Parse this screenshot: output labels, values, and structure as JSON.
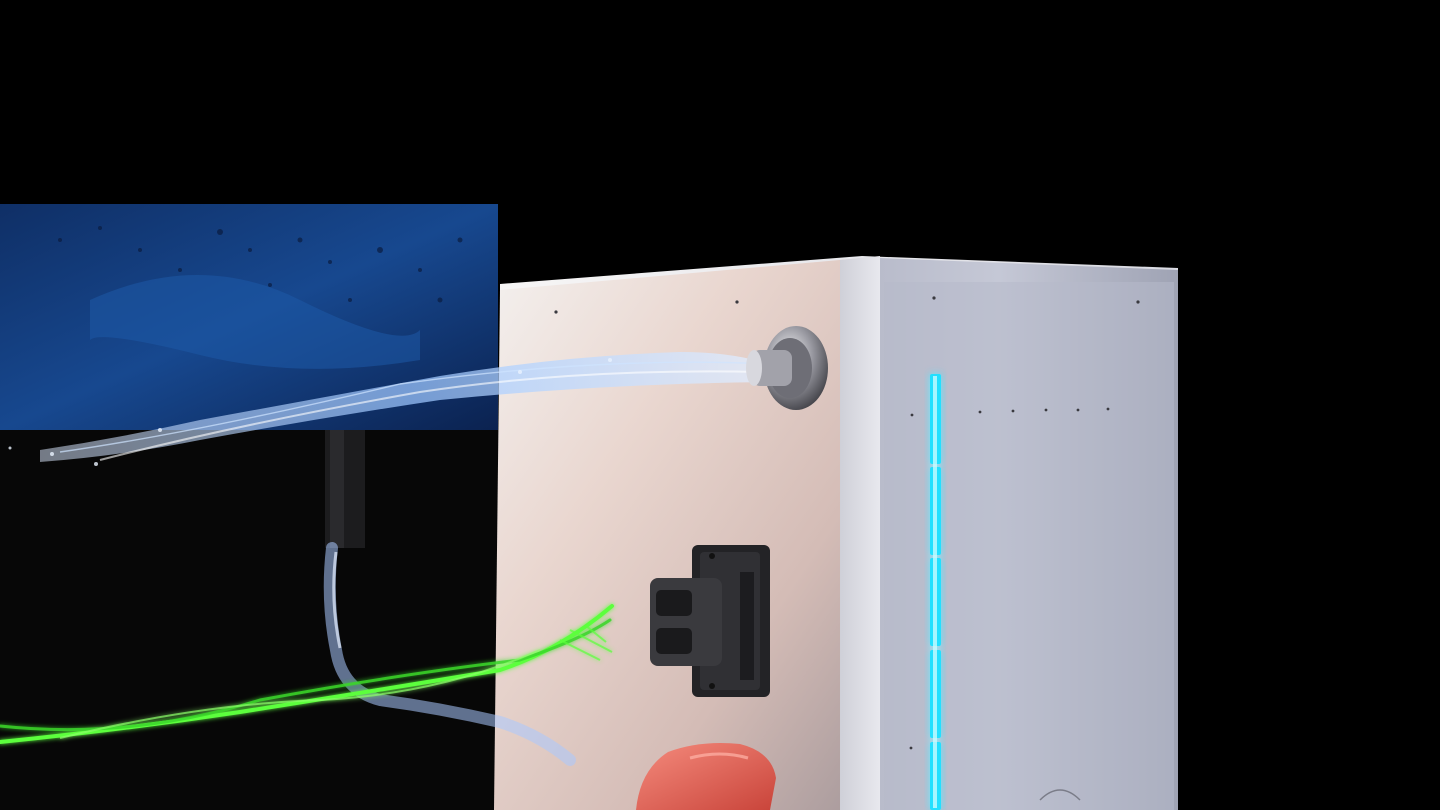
{
  "scene": {
    "type": "3d-render",
    "background_color": "#000000",
    "objects": [
      {
        "name": "water-tank",
        "color": "#123a78"
      },
      {
        "name": "battery-cabinet",
        "color": "#c9ccd6"
      },
      {
        "name": "water-stream",
        "color": "#9cc6ff"
      },
      {
        "name": "nozzle",
        "color": "#8e8e96"
      },
      {
        "name": "connector-port",
        "color": "#2a2a2e"
      },
      {
        "name": "led-strip",
        "color": "#22e0ff"
      },
      {
        "name": "power-cable-green",
        "color": "#5cff3c"
      },
      {
        "name": "red-plug",
        "color": "#e65a4c"
      }
    ]
  }
}
